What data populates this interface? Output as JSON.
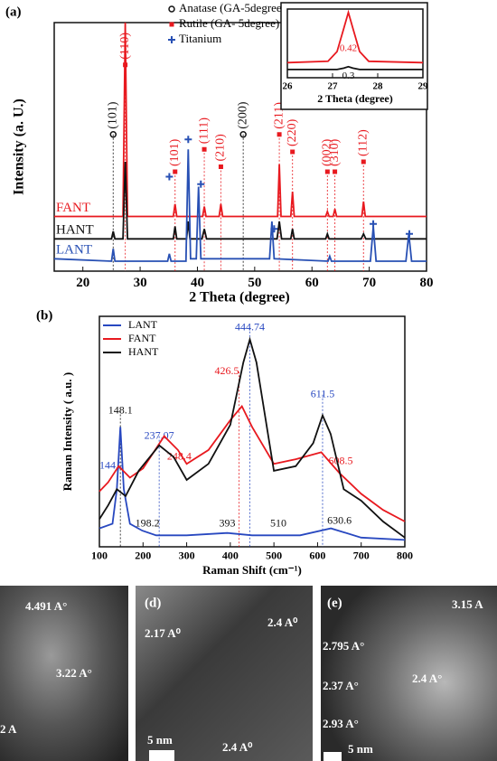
{
  "chart_data": [
    {
      "type": "line",
      "panel_label": "(a)",
      "xlabel": "2 Theta (degree)",
      "ylabel": "Intensity (a. U.)",
      "xlim": [
        15,
        80
      ],
      "ylim": [
        0,
        100
      ],
      "xticks": [
        20,
        30,
        40,
        50,
        60,
        70,
        80
      ],
      "rotated_annotations": true,
      "series": [
        {
          "name": "FANT",
          "color": "#e8191f",
          "x": [
            15,
            27,
            27.4,
            27.8,
            35.8,
            36.1,
            36.4,
            40.9,
            41.2,
            41.5,
            43.8,
            44.1,
            44.4,
            54,
            54.3,
            54.6,
            56.3,
            56.6,
            56.9,
            62.4,
            62.7,
            63,
            63.7,
            64,
            64.3,
            68.7,
            69,
            69.3,
            80
          ],
          "values": [
            22,
            22,
            100,
            22,
            22,
            27,
            22,
            22,
            26,
            22,
            22,
            27,
            22,
            22,
            43,
            22,
            22,
            32,
            22,
            22,
            24,
            22,
            22,
            25,
            22,
            22,
            28,
            22,
            22
          ]
        },
        {
          "name": "HANT",
          "color": "#111111",
          "x": [
            15,
            25,
            25.3,
            25.6,
            27,
            27.4,
            27.8,
            35.8,
            36.1,
            36.4,
            38.1,
            38.4,
            38.7,
            40.8,
            41.2,
            41.6,
            53.9,
            54.3,
            54.7,
            56.3,
            56.6,
            56.9,
            62.4,
            62.7,
            63,
            68.6,
            69,
            69.4,
            80
          ],
          "values": [
            13,
            13,
            16,
            13,
            13,
            44,
            13,
            13,
            18,
            13,
            13,
            20,
            13,
            13,
            17,
            13,
            13,
            20,
            13,
            13,
            17,
            13,
            13,
            15,
            13,
            13,
            15,
            13,
            13
          ]
        },
        {
          "name": "LANT",
          "color": "#2850b4",
          "x": [
            15,
            25,
            25.3,
            25.6,
            34.8,
            35.1,
            35.4,
            38,
            38.4,
            38.8,
            39.8,
            40.2,
            40.6,
            52.6,
            53,
            53.4,
            62.8,
            63.1,
            63.4,
            70.2,
            70.7,
            71.2,
            76.4,
            76.9,
            77.4,
            80
          ],
          "values": [
            5,
            4,
            9,
            4,
            4,
            7,
            4,
            4,
            49,
            5,
            5,
            34,
            5,
            5,
            20,
            5,
            4,
            6,
            4,
            4,
            18,
            4,
            4,
            15,
            4,
            4
          ]
        }
      ],
      "phase_legend": [
        {
          "label": "Anatase (GA-5degree)",
          "marker": "circle",
          "color": "#111111"
        },
        {
          "label": "Rutile (GA- 5degree)",
          "marker": "square",
          "color": "#e8191f"
        },
        {
          "label": "Titanium",
          "marker": "plus",
          "color": "#2850b4"
        }
      ],
      "annotations": [
        {
          "text": "(110)",
          "x": 27.4,
          "y": 83,
          "color": "#e8191f",
          "marker": "square",
          "guide": true
        },
        {
          "text": "(101)",
          "x": 25.3,
          "y": 55,
          "color": "#111111",
          "marker": "circle",
          "guide": true
        },
        {
          "text": "(101)",
          "x": 36.1,
          "y": 40,
          "color": "#e8191f",
          "marker": "square",
          "guide": true
        },
        {
          "text": "(111)",
          "x": 41.2,
          "y": 49,
          "color": "#e8191f",
          "marker": "square",
          "guide": true
        },
        {
          "text": "(210)",
          "x": 44.1,
          "y": 42,
          "color": "#e8191f",
          "marker": "square",
          "guide": true
        },
        {
          "text": "(200)",
          "x": 48,
          "y": 55,
          "color": "#111111",
          "marker": "circle",
          "guide": true
        },
        {
          "text": "(211)",
          "x": 54.3,
          "y": 55,
          "color": "#e8191f",
          "marker": "square",
          "guide": true
        },
        {
          "text": "(220)",
          "x": 56.6,
          "y": 48,
          "color": "#e8191f",
          "marker": "square",
          "guide": true
        },
        {
          "text": "(002)",
          "x": 62.7,
          "y": 40,
          "color": "#e8191f",
          "marker": "square",
          "guide": true
        },
        {
          "text": "(310)",
          "x": 64,
          "y": 40,
          "color": "#e8191f",
          "marker": "square",
          "guide": true
        },
        {
          "text": "(112)",
          "x": 69,
          "y": 44,
          "color": "#e8191f",
          "marker": "square",
          "guide": true
        },
        {
          "x": 35.1,
          "y": 38,
          "color": "#2850b4",
          "marker": "plus"
        },
        {
          "x": 38.4,
          "y": 53,
          "color": "#2850b4",
          "marker": "plus"
        },
        {
          "x": 40.6,
          "y": 35,
          "color": "#2850b4",
          "marker": "plus"
        },
        {
          "x": 53.4,
          "y": 17,
          "color": "#2850b4",
          "marker": "plus"
        },
        {
          "x": 70.7,
          "y": 19,
          "color": "#2850b4",
          "marker": "plus"
        },
        {
          "x": 77,
          "y": 15,
          "color": "#2850b4",
          "marker": "plus"
        }
      ]
    },
    {
      "type": "line",
      "xlabel": "2 Theta (degree)",
      "xlim": [
        26,
        29
      ],
      "ylim": [
        0,
        100
      ],
      "xticks": [
        26,
        27,
        28,
        29
      ],
      "series": [
        {
          "color": "#e8191f",
          "x": [
            26,
            26.9,
            27.1,
            27.25,
            27.35,
            27.45,
            27.6,
            27.8,
            29
          ],
          "values": [
            22,
            24,
            38,
            72,
            95,
            72,
            38,
            24,
            22
          ]
        },
        {
          "color": "#111111",
          "x": [
            26,
            27.1,
            27.25,
            27.35,
            27.45,
            27.6,
            29
          ],
          "values": [
            12,
            12,
            14,
            16,
            14,
            12,
            12
          ]
        }
      ],
      "annotations": [
        {
          "text": "0.42",
          "x": 27.35,
          "y": 42,
          "color": "#e8191f"
        },
        {
          "text": "0.3",
          "x": 27.35,
          "y": 2,
          "color": "#111111"
        }
      ]
    },
    {
      "type": "line",
      "panel_label": "(b)",
      "xlabel": "Raman Shift (cm⁻¹)",
      "ylabel": "Raman Intensity ( a.u. )",
      "xlim": [
        100,
        800
      ],
      "ylim": [
        0,
        100
      ],
      "xticks": [
        100,
        200,
        300,
        400,
        500,
        600,
        700,
        800
      ],
      "legend": true,
      "series": [
        {
          "name": "LANT",
          "color": "#2848c0",
          "x": [
            100,
            130,
            140,
            148.1,
            156,
            170,
            198.2,
            230,
            300,
            393,
            450,
            510,
            560,
            630.6,
            700,
            800
          ],
          "values": [
            8,
            10,
            25,
            52,
            25,
            10,
            7,
            5,
            5,
            6,
            5,
            5,
            5,
            8,
            4,
            3
          ]
        },
        {
          "name": "FANT",
          "color": "#e8191f",
          "x": [
            100,
            120,
            144.2,
            170,
            200,
            248.4,
            280,
            300,
            350,
            400,
            426.5,
            450,
            500,
            550,
            608.5,
            650,
            700,
            750,
            800
          ],
          "values": [
            24,
            28,
            35,
            30,
            34,
            48,
            42,
            36,
            42,
            55,
            61,
            52,
            36,
            38,
            41,
            32,
            23,
            16,
            11
          ]
        },
        {
          "name": "HANT",
          "color": "#111111",
          "x": [
            100,
            120,
            140,
            160,
            190,
            237.07,
            270,
            300,
            350,
            400,
            430,
            444.74,
            460,
            500,
            550,
            590,
            611.5,
            630,
            660,
            700,
            750,
            800
          ],
          "values": [
            12,
            18,
            25,
            22,
            33,
            44,
            39,
            29,
            36,
            53,
            80,
            90,
            80,
            33,
            35,
            45,
            57,
            49,
            25,
            20,
            11,
            4
          ]
        }
      ],
      "annotations": [
        {
          "text": "148.1",
          "x": 148.1,
          "y": 59,
          "color": "#111111",
          "guide": true
        },
        {
          "text": "144.2",
          "x": 128,
          "y": 35,
          "color": "#2848c0"
        },
        {
          "text": "237.07",
          "x": 237.07,
          "y": 48,
          "color": "#2848c0",
          "guide": true
        },
        {
          "text": "248.4",
          "x": 255,
          "y": 39,
          "color": "#e8191f",
          "anchor": "start"
        },
        {
          "text": "426.5",
          "x": 420,
          "y": 76,
          "color": "#e8191f",
          "anchor": "end",
          "guide": true
        },
        {
          "text": "444.74",
          "x": 444.74,
          "y": 95,
          "color": "#2848c0",
          "guide": true
        },
        {
          "text": "611.5",
          "x": 611.5,
          "y": 66,
          "color": "#2848c0",
          "guide": true
        },
        {
          "text": "608.5",
          "x": 625,
          "y": 37,
          "color": "#e8191f",
          "anchor": "start"
        },
        {
          "text": "198.2",
          "x": 210,
          "y": 10,
          "color": "#111111"
        },
        {
          "text": "393",
          "x": 393,
          "y": 10,
          "color": "#111111"
        },
        {
          "text": "510",
          "x": 510,
          "y": 10,
          "color": "#111111"
        },
        {
          "text": "630.6",
          "x": 650,
          "y": 11,
          "color": "#111111"
        }
      ]
    }
  ],
  "images": [
    {
      "texts": [
        "4.491 A°",
        "3.22 A°",
        "2 A"
      ]
    },
    {
      "label": "(d)",
      "texts": [
        "2.17 A⁰",
        "2.4 A⁰",
        "2.4 A⁰"
      ],
      "scale": "5 nm"
    },
    {
      "label": "(e)",
      "texts": [
        "3.15 A",
        "2.795 A°",
        "2.37 A°",
        "2.4 A°",
        "2.93 A°"
      ],
      "scale": "5 nm"
    }
  ]
}
